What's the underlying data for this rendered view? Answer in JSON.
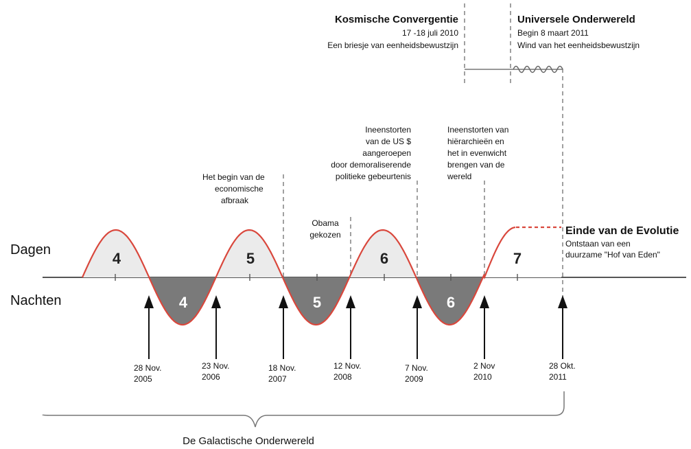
{
  "header_left": {
    "title": "Kosmische Convergentie",
    "date": "17 -18 juli 2010",
    "subtitle": "Een briesje van eenheidsbewustzijn"
  },
  "header_right": {
    "title": "Universele Onderwereld",
    "date": "Begin 8 maart 2011",
    "subtitle": "Wind van het eenheidsbewustzijn"
  },
  "row_labels": {
    "days": "Dagen",
    "nights": "Nachten"
  },
  "days": [
    "4",
    "5",
    "6",
    "7"
  ],
  "nights": [
    "4",
    "5",
    "6"
  ],
  "annotations": {
    "economic": [
      "Het begin van de",
      "economische",
      "afbraak"
    ],
    "obama": [
      "Obama",
      "gekozen"
    ],
    "usd": [
      "Ineenstorten",
      "van de US $",
      "aangeroepen",
      "door demoraliserende",
      "politieke gebeurtenis"
    ],
    "hierarchies": [
      "Ineenstorten van",
      "hiërarchieën en",
      "het in evenwicht",
      "brengen van de",
      "wereld"
    ]
  },
  "end": {
    "title": "Einde van de Evolutie",
    "lines": [
      "Ontstaan van een",
      "duurzame \"Hof van Eden\""
    ]
  },
  "dates": [
    [
      "28 Nov.",
      "2005"
    ],
    [
      "23 Nov.",
      "2006"
    ],
    [
      "18 Nov.",
      "2007"
    ],
    [
      "12 Nov.",
      "2008"
    ],
    [
      "7 Nov.",
      "2009"
    ],
    [
      "2 Nov",
      "2010"
    ],
    [
      "28 Okt.",
      "2011"
    ]
  ],
  "brace_label": "De Galactische Onderwereld",
  "colors": {
    "wave": "#d9473c",
    "day_fill": "#ebebeb",
    "night_fill": "#7a7a7a",
    "axis": "#555555",
    "dashed": "#777777"
  }
}
